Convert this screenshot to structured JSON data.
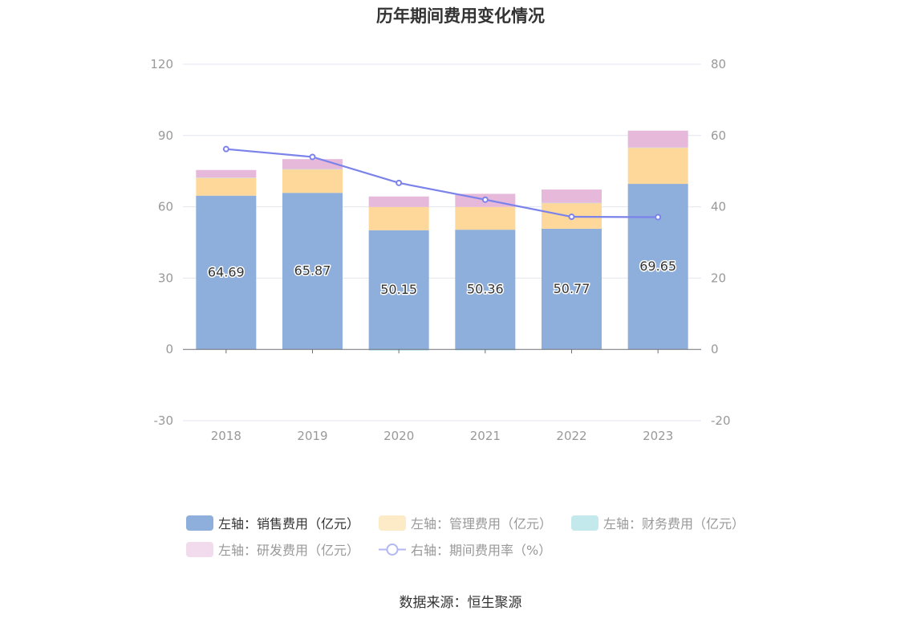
{
  "title": "历年期间费用变化情况",
  "source_text": "数据来源：恒生聚源",
  "chart_data": {
    "type": "bar",
    "title": "历年期间费用变化情况",
    "categories": [
      "2018",
      "2019",
      "2020",
      "2021",
      "2022",
      "2023"
    ],
    "left_axis": {
      "min": -30,
      "max": 120,
      "ticks": [
        "120",
        "90",
        "60",
        "30",
        "0",
        "-30"
      ]
    },
    "right_axis": {
      "min": -20,
      "max": 80,
      "ticks": [
        "80",
        "60",
        "40",
        "20",
        "0",
        "-20"
      ]
    },
    "stacked": true,
    "grid": true,
    "legend_position": "bottom",
    "series": [
      {
        "name": "左轴：销售费用（亿元）",
        "axis": "left",
        "type": "bar",
        "color": "#8eaedb",
        "values": [
          64.69,
          65.87,
          50.15,
          50.36,
          50.77,
          69.65
        ],
        "labels": [
          "64.69",
          "65.87",
          "50.15",
          "50.36",
          "50.77",
          "69.65"
        ]
      },
      {
        "name": "左轴：管理费用（亿元）",
        "axis": "left",
        "type": "bar",
        "color": "#fdd89a",
        "values": [
          7.5,
          9.9,
          9.8,
          9.6,
          10.8,
          15.2
        ]
      },
      {
        "name": "左轴：财务费用（亿元）",
        "axis": "left",
        "type": "bar",
        "color": "#b6e6ea",
        "values": [
          0.1,
          0.1,
          -0.5,
          -0.4,
          0.1,
          0.1
        ]
      },
      {
        "name": "左轴：研发费用（亿元）",
        "axis": "left",
        "type": "bar",
        "color": "#e6b8d9",
        "values": [
          3.2,
          4.2,
          4.4,
          5.5,
          5.6,
          7.1
        ]
      },
      {
        "name": "右轴：期间费用率（%）",
        "axis": "right",
        "type": "line",
        "color": "#7b83eb",
        "values": [
          56.2,
          54.0,
          46.7,
          42.0,
          37.2,
          37.1
        ]
      }
    ]
  }
}
